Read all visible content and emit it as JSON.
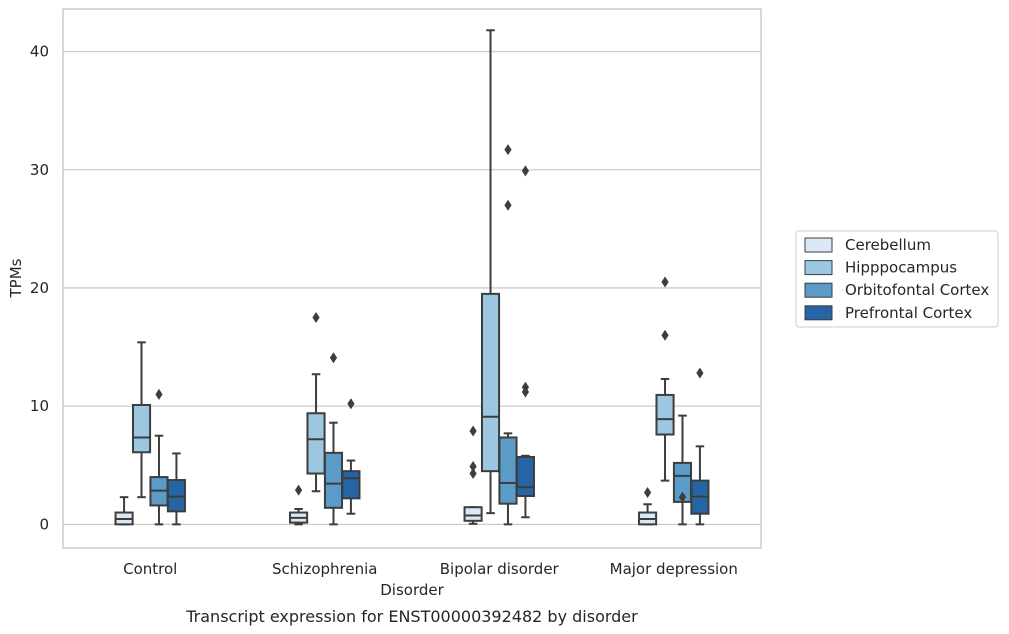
{
  "chart_data": {
    "type": "box",
    "title": "",
    "caption": "Transcript expression for ENST00000392482 by disorder",
    "xlabel": "Disorder",
    "ylabel": "TPMs",
    "ylim": [
      -2,
      43.6
    ],
    "yticks": [
      0,
      10,
      20,
      30,
      40
    ],
    "grid": "horizontal",
    "legend_position": "right",
    "categories": [
      "Control",
      "Schizophrenia",
      "Bipolar disorder",
      "Major depression"
    ],
    "series": [
      {
        "name": "Cerebellum",
        "color": "#dbe8f5",
        "boxes": [
          {
            "whisker_low": 0.0,
            "q1": 0.0,
            "median": 0.45,
            "q3": 1.0,
            "whisker_high": 2.3,
            "outliers": []
          },
          {
            "whisker_low": 0.0,
            "q1": 0.15,
            "median": 0.55,
            "q3": 1.0,
            "whisker_high": 1.3,
            "outliers": [
              2.9
            ]
          },
          {
            "whisker_low": 0.05,
            "q1": 0.3,
            "median": 0.75,
            "q3": 1.45,
            "whisker_high": 1.45,
            "outliers": [
              4.3,
              4.9,
              7.9
            ]
          },
          {
            "whisker_low": 0.0,
            "q1": 0.0,
            "median": 0.45,
            "q3": 1.0,
            "whisker_high": 1.7,
            "outliers": [
              2.7
            ]
          }
        ]
      },
      {
        "name": "Hipppocampus",
        "color": "#9bc8e0",
        "boxes": [
          {
            "whisker_low": 2.3,
            "q1": 6.1,
            "median": 7.35,
            "q3": 10.1,
            "whisker_high": 15.4,
            "outliers": []
          },
          {
            "whisker_low": 2.8,
            "q1": 4.3,
            "median": 7.2,
            "q3": 9.4,
            "whisker_high": 12.7,
            "outliers": [
              17.5
            ]
          },
          {
            "whisker_low": 0.95,
            "q1": 4.5,
            "median": 9.1,
            "q3": 19.5,
            "whisker_high": 41.8,
            "outliers": []
          },
          {
            "whisker_low": 3.7,
            "q1": 7.6,
            "median": 8.9,
            "q3": 10.95,
            "whisker_high": 12.3,
            "outliers": [
              16.0,
              20.5
            ]
          }
        ]
      },
      {
        "name": "Orbitofontal Cortex",
        "color": "#5a9bc8",
        "boxes": [
          {
            "whisker_low": 0.0,
            "q1": 1.6,
            "median": 2.85,
            "q3": 4.0,
            "whisker_high": 7.5,
            "outliers": [
              11.0
            ]
          },
          {
            "whisker_low": 0.0,
            "q1": 1.4,
            "median": 3.45,
            "q3": 6.05,
            "whisker_high": 8.6,
            "outliers": [
              14.1
            ]
          },
          {
            "whisker_low": 0.0,
            "q1": 1.75,
            "median": 3.5,
            "q3": 7.35,
            "whisker_high": 7.7,
            "outliers": [
              27.0,
              31.7
            ]
          },
          {
            "whisker_low": 0.0,
            "q1": 1.9,
            "median": 4.1,
            "q3": 5.2,
            "whisker_high": 9.2,
            "outliers": [
              2.3
            ]
          }
        ]
      },
      {
        "name": "Prefrontal Cortex",
        "color": "#2565a6",
        "boxes": [
          {
            "whisker_low": 0.0,
            "q1": 1.1,
            "median": 2.35,
            "q3": 3.75,
            "whisker_high": 6.0,
            "outliers": []
          },
          {
            "whisker_low": 0.9,
            "q1": 2.2,
            "median": 3.9,
            "q3": 4.5,
            "whisker_high": 5.4,
            "outliers": [
              10.2
            ]
          },
          {
            "whisker_low": 0.6,
            "q1": 2.4,
            "median": 3.15,
            "q3": 5.7,
            "whisker_high": 5.8,
            "outliers": [
              11.2,
              11.6,
              29.9
            ]
          },
          {
            "whisker_low": 0.0,
            "q1": 0.9,
            "median": 2.35,
            "q3": 3.7,
            "whisker_high": 6.6,
            "outliers": [
              12.8
            ]
          }
        ]
      }
    ]
  }
}
